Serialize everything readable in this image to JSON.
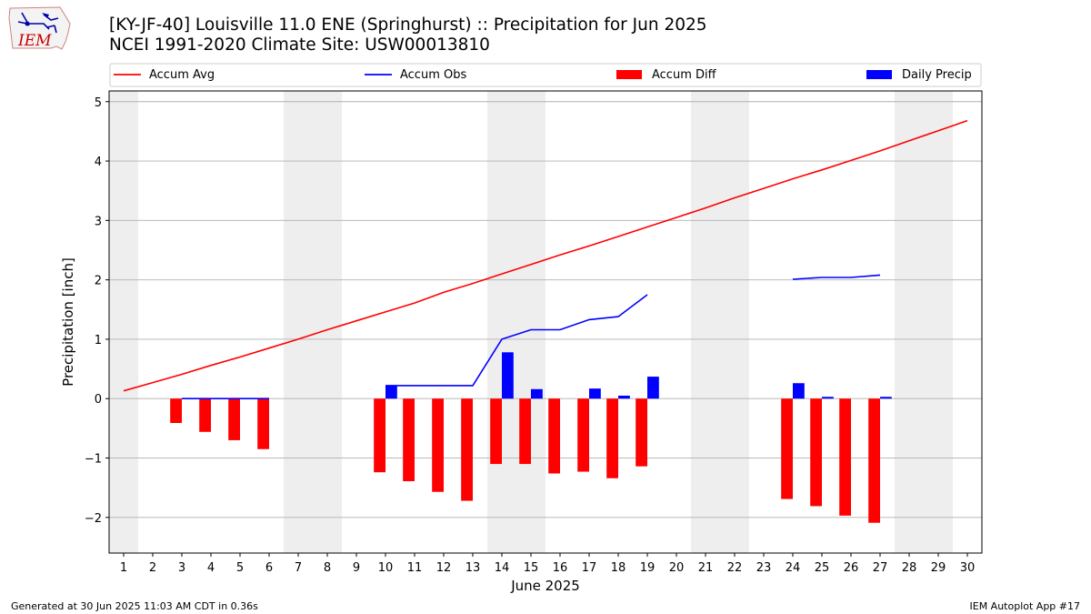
{
  "header": {
    "title_line1": "[KY-JF-40] Louisville 11.0 ENE (Springhurst) :: Precipitation for Jun 2025",
    "title_line2": "NCEI 1991-2020 Climate Site: USW00013810",
    "logo_text": "IEM"
  },
  "footer": {
    "left": "Generated at 30 Jun 2025 11:03 AM CDT in 0.36s",
    "right": "IEM Autoplot App #17"
  },
  "colors": {
    "accum_avg": "#ff0000",
    "accum_obs": "#0000ff",
    "accum_diff": "#ff0000",
    "daily_precip": "#0000ff",
    "weekend_shade": "#eeeeee",
    "grid": "#b0b0b0"
  },
  "chart_data": {
    "type": "bar",
    "xlabel": "June 2025",
    "ylabel": "Precipitation [inch]",
    "xlim": [
      0.5,
      30.5
    ],
    "ylim": [
      -2.6,
      5.18
    ],
    "yticks": [
      -2,
      -1,
      0,
      1,
      2,
      3,
      4,
      5
    ],
    "ytick_labels": [
      "−2",
      "−1",
      "0",
      "1",
      "2",
      "3",
      "4",
      "5"
    ],
    "grid": "horizontal",
    "legend_position": "top",
    "legend": [
      "Accum Avg",
      "Accum Obs",
      "Accum Diff",
      "Daily Precip"
    ],
    "days": [
      1,
      2,
      3,
      4,
      5,
      6,
      7,
      8,
      9,
      10,
      11,
      12,
      13,
      14,
      15,
      16,
      17,
      18,
      19,
      20,
      21,
      22,
      23,
      24,
      25,
      26,
      27,
      28,
      29,
      30
    ],
    "weekend_days": [
      1,
      7,
      8,
      14,
      15,
      21,
      22,
      28,
      29
    ],
    "series": [
      {
        "name": "Accum Avg",
        "kind": "line",
        "x": [
          1,
          2,
          3,
          4,
          5,
          6,
          7,
          8,
          9,
          10,
          11,
          12,
          13,
          14,
          15,
          16,
          17,
          18,
          19,
          20,
          21,
          22,
          23,
          24,
          25,
          26,
          27,
          28,
          29,
          30
        ],
        "values": [
          0.13,
          0.27,
          0.41,
          0.56,
          0.7,
          0.85,
          1.0,
          1.16,
          1.31,
          1.46,
          1.61,
          1.79,
          1.94,
          2.1,
          2.26,
          2.42,
          2.57,
          2.73,
          2.89,
          3.05,
          3.21,
          3.38,
          3.54,
          3.7,
          3.85,
          4.01,
          4.17,
          4.34,
          4.51,
          4.68
        ]
      },
      {
        "name": "Accum Obs",
        "kind": "line",
        "x": [
          3,
          4,
          5,
          6,
          null,
          10,
          11,
          12,
          13,
          14,
          15,
          16,
          17,
          18,
          19,
          null,
          24,
          25,
          26,
          27
        ],
        "values": [
          0.0,
          0.0,
          0.0,
          0.0,
          null,
          0.22,
          0.22,
          0.22,
          0.22,
          1.0,
          1.16,
          1.16,
          1.33,
          1.38,
          1.75,
          null,
          2.01,
          2.04,
          2.04,
          2.08
        ]
      },
      {
        "name": "Accum Diff",
        "kind": "bar",
        "x": [
          3,
          4,
          5,
          6,
          10,
          11,
          12,
          13,
          14,
          15,
          16,
          17,
          18,
          19,
          24,
          25,
          26,
          27
        ],
        "values": [
          -0.41,
          -0.56,
          -0.7,
          -0.85,
          -1.24,
          -1.39,
          -1.57,
          -1.72,
          -1.1,
          -1.1,
          -1.26,
          -1.23,
          -1.34,
          -1.14,
          -1.69,
          -1.81,
          -1.97,
          -2.09
        ]
      },
      {
        "name": "Daily Precip",
        "kind": "bar",
        "x": [
          3,
          4,
          5,
          6,
          10,
          11,
          12,
          13,
          14,
          15,
          16,
          17,
          18,
          19,
          24,
          25,
          26,
          27
        ],
        "values": [
          0,
          0,
          0,
          0,
          0.22,
          0,
          0,
          0,
          0.78,
          0.16,
          0,
          0.17,
          0.05,
          0.37,
          0.26,
          0.03,
          0,
          0.03
        ]
      }
    ]
  }
}
